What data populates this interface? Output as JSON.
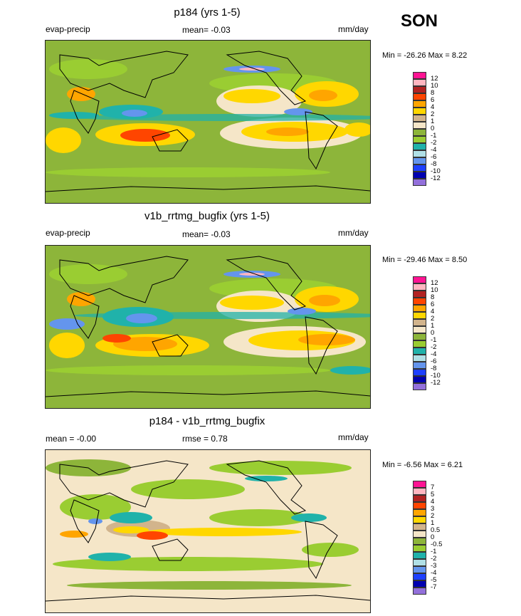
{
  "season": "SON",
  "panels": [
    {
      "title": "p184 (yrs 1-5)",
      "variable": "evap-precip",
      "stat_center": "mean=  -0.03",
      "units": "mm/day",
      "minmax": "Min = -26.26 Max =   8.22"
    },
    {
      "title": "v1b_rrtmg_bugfix (yrs 1-5)",
      "variable": "evap-precip",
      "stat_center": "mean=  -0.03",
      "units": "mm/day",
      "minmax": "Min = -29.46 Max =   8.50"
    },
    {
      "title": "p184 - v1b_rrtmg_bugfix",
      "stat_left": "mean =  -0.00",
      "stat_center": "rmse =   0.78",
      "units": "mm/day",
      "minmax": "Min =  -6.56 Max =   6.21"
    }
  ],
  "colorbars": [
    {
      "labels": [
        "12",
        "10",
        "8",
        "6",
        "4",
        "2",
        "1",
        "0",
        "-1",
        "-2",
        "-4",
        "-6",
        "-8",
        "-10",
        "-12"
      ],
      "colors": [
        "#ff1493",
        "#ffb6c1",
        "#b22222",
        "#ff4500",
        "#ffa500",
        "#ffd700",
        "#d2b48c",
        "#f5e6c8",
        "#8db53a",
        "#9acd32",
        "#20b2aa",
        "#b0e0e6",
        "#6495ed",
        "#1e40ff",
        "#0000b0",
        "#9370db"
      ]
    },
    {
      "labels": [
        "12",
        "10",
        "8",
        "6",
        "4",
        "2",
        "1",
        "0",
        "-1",
        "-2",
        "-4",
        "-6",
        "-8",
        "-10",
        "-12"
      ],
      "colors": [
        "#ff1493",
        "#ffb6c1",
        "#b22222",
        "#ff4500",
        "#ffa500",
        "#ffd700",
        "#d2b48c",
        "#f5e6c8",
        "#8db53a",
        "#9acd32",
        "#20b2aa",
        "#b0e0e6",
        "#6495ed",
        "#1e40ff",
        "#0000b0",
        "#9370db"
      ]
    },
    {
      "labels": [
        "7",
        "5",
        "4",
        "3",
        "2",
        "1",
        "0.5",
        "0",
        "-0.5",
        "-1",
        "-2",
        "-3",
        "-4",
        "-5",
        "-7"
      ],
      "colors": [
        "#ff1493",
        "#ffb6c1",
        "#b22222",
        "#ff4500",
        "#ffa500",
        "#ffd700",
        "#d2b48c",
        "#f5e6c8",
        "#8db53a",
        "#9acd32",
        "#20b2aa",
        "#b0e0e6",
        "#6495ed",
        "#1e40ff",
        "#0000b0",
        "#9370db"
      ]
    }
  ]
}
